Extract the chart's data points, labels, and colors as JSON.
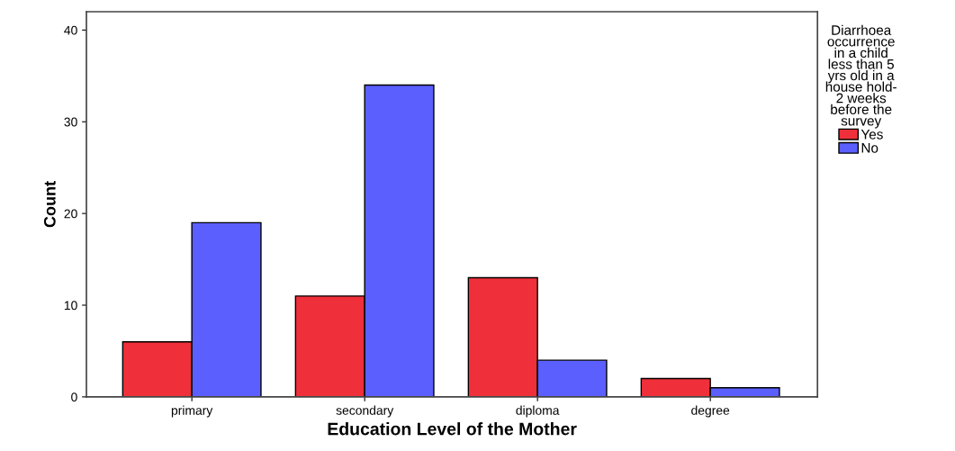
{
  "chart_data": {
    "type": "bar",
    "xlabel": "Education Level of the Mother",
    "ylabel": "Count",
    "legend_title": "Diarrhoea\noccurrence\nin a child\nless than 5\nyrs old in a\nhouse hold-\n2 weeks\nbefore the\nsurvey",
    "categories": [
      "primary",
      "secondary",
      "diploma",
      "degree"
    ],
    "series": [
      {
        "name": "Yes",
        "color": "#ef303a",
        "values": [
          6,
          11,
          13,
          2
        ]
      },
      {
        "name": "No",
        "color": "#5b5ffe",
        "values": [
          19,
          34,
          4,
          1
        ]
      }
    ],
    "ylim": [
      0,
      42
    ],
    "yticks": [
      0,
      10,
      20,
      30,
      40
    ],
    "grid": false,
    "legend": "right"
  }
}
